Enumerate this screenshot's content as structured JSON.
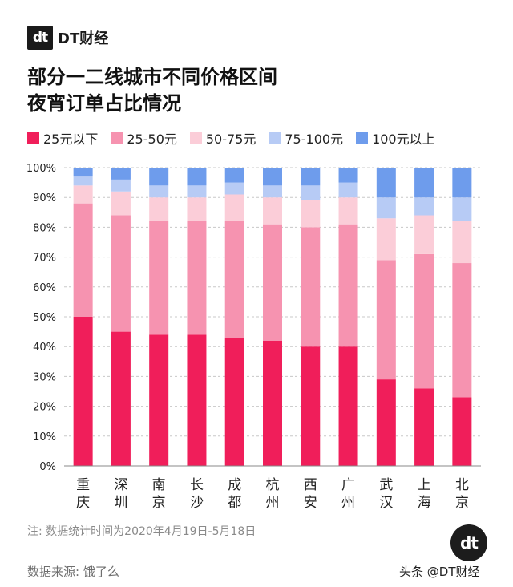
{
  "brand": {
    "logo_glyph": "dt",
    "name": "DT财经"
  },
  "title_lines": [
    "部分一二线城市不同价格区间",
    "夜宵订单占比情况"
  ],
  "note": "注: 数据统计时间为2020年4月19日-5月18日",
  "source": "数据来源: 饿了么",
  "watermark": {
    "glyph": "dt",
    "text": "头条 @DT财经"
  },
  "colors": {
    "s1": "#f01e5a",
    "s2": "#f693b0",
    "s3": "#fbcdd8",
    "s4": "#b7cbf5",
    "s5": "#6e9cec",
    "grid": "#c8c8c8",
    "axis_text": "#222222"
  },
  "chart_data": {
    "type": "bar",
    "stacked": true,
    "title": "部分一二线城市不同价格区间夜宵订单占比情况",
    "xlabel": "",
    "ylabel": "",
    "ylim": [
      0,
      100
    ],
    "yticks": [
      0,
      10,
      20,
      30,
      40,
      50,
      60,
      70,
      80,
      90,
      100
    ],
    "ytick_labels": [
      "0%",
      "10%",
      "20%",
      "30%",
      "40%",
      "50%",
      "60%",
      "70%",
      "80%",
      "90%",
      "100%"
    ],
    "grid": true,
    "legend_position": "top-left",
    "categories": [
      "重庆",
      "深圳",
      "南京",
      "长沙",
      "成都",
      "杭州",
      "西安",
      "广州",
      "武汉",
      "上海",
      "北京"
    ],
    "series": [
      {
        "name": "25元以下",
        "color_key": "s1",
        "values": [
          50,
          45,
          44,
          44,
          43,
          42,
          40,
          40,
          29,
          26,
          23
        ]
      },
      {
        "name": "25-50元",
        "color_key": "s2",
        "values": [
          38,
          39,
          38,
          38,
          39,
          39,
          40,
          41,
          40,
          45,
          45
        ]
      },
      {
        "name": "50-75元",
        "color_key": "s3",
        "values": [
          6,
          8,
          8,
          8,
          9,
          9,
          9,
          9,
          14,
          13,
          14
        ]
      },
      {
        "name": "75-100元",
        "color_key": "s4",
        "values": [
          3,
          4,
          4,
          4,
          4,
          4,
          5,
          5,
          7,
          6,
          8
        ]
      },
      {
        "name": "100元以上",
        "color_key": "s5",
        "values": [
          3,
          4,
          6,
          6,
          5,
          6,
          6,
          5,
          10,
          10,
          10
        ]
      }
    ]
  }
}
